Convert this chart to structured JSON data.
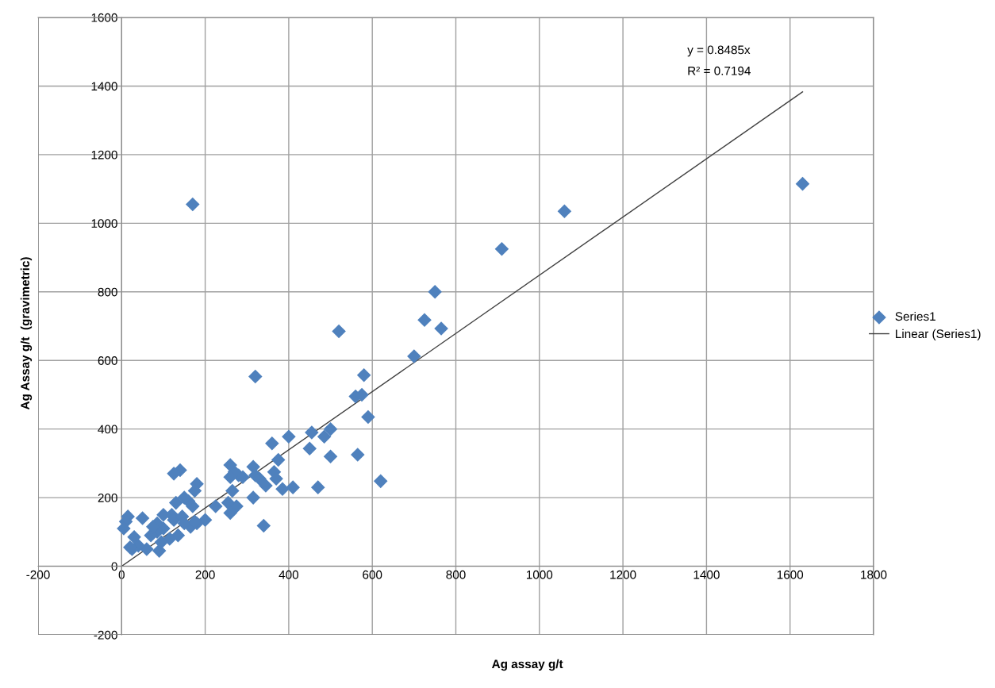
{
  "chart_data": {
    "type": "scatter",
    "xlabel": "Ag assay g/t",
    "ylabel": "Ag Assay g/t  (gravimetric)",
    "annotations": [
      "y = 0.8485x",
      "R² = 0.7194"
    ],
    "xlim": [
      -200,
      1800
    ],
    "xticks": [
      -200,
      0,
      200,
      400,
      600,
      800,
      1000,
      1200,
      1400,
      1600,
      1800
    ],
    "ylim": [
      -200,
      1600
    ],
    "yticks": [
      -200,
      0,
      200,
      400,
      600,
      800,
      1000,
      1200,
      1400,
      1600
    ],
    "grid": true,
    "legend": "right",
    "marker": "diamond",
    "series": [
      {
        "name": "Series1",
        "type": "scatter",
        "color": "#4f81bd",
        "x": [
          170,
          1060,
          1630,
          910,
          750,
          725,
          765,
          520,
          700,
          580,
          320,
          560,
          575,
          590,
          500,
          485,
          455,
          400,
          450,
          565,
          500,
          620,
          470,
          410,
          385,
          375,
          360,
          365,
          370,
          345,
          340,
          315,
          320,
          330,
          315,
          290,
          280,
          270,
          275,
          260,
          260,
          265,
          255,
          260,
          225,
          200,
          180,
          175,
          170,
          165,
          160,
          150,
          140,
          125,
          130,
          120,
          125,
          145,
          135,
          115,
          100,
          100,
          85,
          70,
          60,
          50,
          40,
          30,
          25,
          15,
          10,
          5,
          20,
          90,
          150,
          180,
          175,
          95,
          85,
          75
        ],
        "values": [
          1055,
          1035,
          1115,
          925,
          800,
          718,
          693,
          685,
          612,
          557,
          553,
          495,
          500,
          435,
          400,
          378,
          390,
          378,
          343,
          325,
          320,
          248,
          230,
          230,
          225,
          310,
          358,
          275,
          255,
          235,
          118,
          290,
          265,
          255,
          200,
          260,
          265,
          275,
          175,
          295,
          260,
          220,
          185,
          155,
          175,
          135,
          240,
          220,
          175,
          115,
          190,
          200,
          280,
          270,
          185,
          150,
          135,
          145,
          90,
          80,
          150,
          110,
          100,
          90,
          50,
          140,
          60,
          85,
          50,
          145,
          130,
          110,
          55,
          45,
          125,
          125,
          130,
          70,
          125,
          115
        ]
      },
      {
        "name": "Linear (Series1)",
        "type": "line",
        "color": "#404040",
        "marker": "none",
        "x": [
          0,
          1630
        ],
        "values": [
          0,
          1383
        ]
      }
    ]
  }
}
